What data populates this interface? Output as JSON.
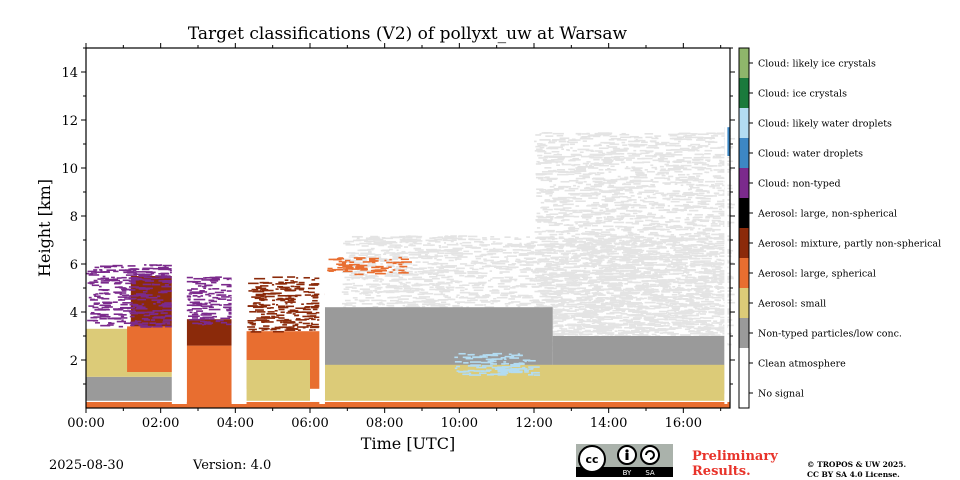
{
  "chart_data": {
    "type": "heatmap",
    "title": "Target classifications (V2) of pollyxt_uw at Warsaw",
    "xlabel": "Time [UTC]",
    "ylabel": "Height [km]",
    "xlim_hours": [
      0,
      17.25
    ],
    "ylim_km": [
      0,
      15
    ],
    "x_ticks": [
      "00:00",
      "02:00",
      "04:00",
      "06:00",
      "08:00",
      "10:00",
      "12:00",
      "14:00",
      "16:00"
    ],
    "x_tick_hours": [
      0,
      2,
      4,
      6,
      8,
      10,
      12,
      14,
      16
    ],
    "y_ticks": [
      2,
      4,
      6,
      8,
      10,
      12,
      14
    ],
    "classes": [
      {
        "code": 11,
        "label": "Cloud: likely ice crystals",
        "color": "#8fb66b"
      },
      {
        "code": 10,
        "label": "Cloud: ice crystals",
        "color": "#1a7a3c"
      },
      {
        "code": 9,
        "label": "Cloud: likely water droplets",
        "color": "#b3dcf2"
      },
      {
        "code": 8,
        "label": "Cloud: water droplets",
        "color": "#3d87c4"
      },
      {
        "code": 7,
        "label": "Cloud: non-typed",
        "color": "#7b2a8c"
      },
      {
        "code": 6,
        "label": "Aerosol: large, non-spherical",
        "color": "#000000"
      },
      {
        "code": 5,
        "label": "Aerosol: mixture, partly non-spherical",
        "color": "#8b2a0a"
      },
      {
        "code": 4,
        "label": "Aerosol: large, spherical",
        "color": "#e86e30"
      },
      {
        "code": 3,
        "label": "Aerosol: small",
        "color": "#dccb78"
      },
      {
        "code": 2,
        "label": "Non-typed particles/low conc.",
        "color": "#9a9a9a"
      },
      {
        "code": 1,
        "label": "Clean atmosphere",
        "color": "#ffffff"
      },
      {
        "code": 0,
        "label": "No signal",
        "color": "#ffffff"
      }
    ],
    "regions": [
      {
        "class": 1,
        "t0": 6.85,
        "t1": 17.1,
        "h0": 2.4,
        "h1": 7.2,
        "fill": "#e4e4e4",
        "kind": "speckle"
      },
      {
        "class": 1,
        "t0": 12.0,
        "t1": 17.1,
        "h0": 3.0,
        "h1": 11.5,
        "fill": "#e4e4e4",
        "kind": "speckle"
      },
      {
        "class": 2,
        "t0": 6.4,
        "t1": 12.5,
        "h0": 1.6,
        "h1": 4.2,
        "kind": "solid"
      },
      {
        "class": 2,
        "t0": 12.5,
        "t1": 17.1,
        "h0": 0.6,
        "h1": 3.0,
        "kind": "solid"
      },
      {
        "class": 2,
        "t0": 0.0,
        "t1": 2.3,
        "h0": 0.3,
        "h1": 1.3,
        "kind": "solid"
      },
      {
        "class": 3,
        "t0": 0.0,
        "t1": 2.3,
        "h0": 1.3,
        "h1": 3.3,
        "kind": "solid"
      },
      {
        "class": 4,
        "t0": 1.1,
        "t1": 2.3,
        "h0": 1.5,
        "h1": 3.4,
        "kind": "solid"
      },
      {
        "class": 5,
        "t0": 1.2,
        "t1": 2.3,
        "h0": 3.4,
        "h1": 5.5,
        "kind": "solid"
      },
      {
        "class": 7,
        "t0": 0.0,
        "t1": 2.3,
        "h0": 3.4,
        "h1": 6.0,
        "kind": "speckle"
      },
      {
        "class": 4,
        "t0": 2.7,
        "t1": 3.9,
        "h0": 0.0,
        "h1": 2.6,
        "kind": "solid"
      },
      {
        "class": 5,
        "t0": 2.7,
        "t1": 3.9,
        "h0": 2.6,
        "h1": 3.7,
        "kind": "solid"
      },
      {
        "class": 7,
        "t0": 2.6,
        "t1": 3.9,
        "h0": 3.5,
        "h1": 5.5,
        "kind": "speckle"
      },
      {
        "class": 4,
        "t0": 4.3,
        "t1": 6.3,
        "h0": 0.8,
        "h1": 3.2,
        "kind": "solid"
      },
      {
        "class": 3,
        "t0": 4.3,
        "t1": 6.0,
        "h0": 0.3,
        "h1": 2.0,
        "kind": "solid"
      },
      {
        "class": 5,
        "t0": 4.3,
        "t1": 6.2,
        "h0": 3.2,
        "h1": 5.5,
        "kind": "speckle"
      },
      {
        "class": 3,
        "t0": 6.4,
        "t1": 17.1,
        "h0": 0.3,
        "h1": 1.8,
        "kind": "solid"
      },
      {
        "class": 9,
        "t0": 9.8,
        "t1": 12.0,
        "h0": 1.4,
        "h1": 2.3,
        "kind": "speckle"
      },
      {
        "class": 4,
        "t0": 6.4,
        "t1": 8.5,
        "h0": 5.6,
        "h1": 6.3,
        "kind": "speckle"
      },
      {
        "class": 8,
        "t0": 17.1,
        "t1": 17.25,
        "h0": 10.5,
        "h1": 11.7,
        "kind": "solid"
      },
      {
        "class": 4,
        "t0": 0.0,
        "t1": 17.25,
        "h0": 0.0,
        "h1": 0.25,
        "kind": "solid"
      }
    ]
  },
  "footer": {
    "date": "2025-08-30",
    "version": "Version: 4.0",
    "preliminary_line1": "Preliminary",
    "preliminary_line2": "Results.",
    "copyright_line1": "© TROPOS & UW 2025.",
    "copyright_line2": "CC BY SA 4.0 License.",
    "license_badge_by": "BY",
    "license_badge_sa": "SA"
  }
}
